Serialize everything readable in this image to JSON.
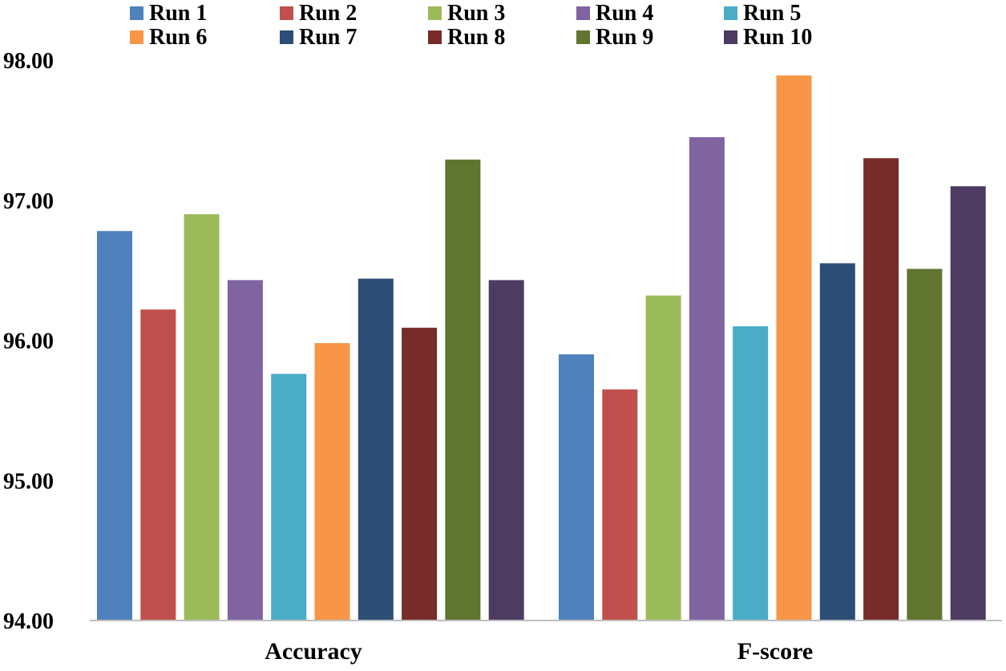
{
  "chart_data": {
    "type": "bar",
    "title": "",
    "xlabel": "",
    "ylabel": "",
    "ylim": [
      94,
      98
    ],
    "yticks": [
      "94.00",
      "95.00",
      "96.00",
      "97.00",
      "98.00"
    ],
    "grid": false,
    "legend_position": "top",
    "categories": [
      "Accuracy",
      "F-score"
    ],
    "series": [
      {
        "name": "Run 1",
        "color": "#4F81BD",
        "values": [
          96.78,
          95.9
        ]
      },
      {
        "name": "Run 2",
        "color": "#C0504D",
        "values": [
          96.22,
          95.65
        ]
      },
      {
        "name": "Run 3",
        "color": "#9BBB59",
        "values": [
          96.9,
          96.32
        ]
      },
      {
        "name": "Run 4",
        "color": "#8064A2",
        "values": [
          96.43,
          97.45
        ]
      },
      {
        "name": "Run 5",
        "color": "#4BACC6",
        "values": [
          95.76,
          96.1
        ]
      },
      {
        "name": "Run 6",
        "color": "#F79646",
        "values": [
          95.98,
          97.89
        ]
      },
      {
        "name": "Run 7",
        "color": "#2C4D75",
        "values": [
          96.44,
          96.55
        ]
      },
      {
        "name": "Run 8",
        "color": "#772C2A",
        "values": [
          96.09,
          97.3
        ]
      },
      {
        "name": "Run 9",
        "color": "#5F7530",
        "values": [
          97.29,
          96.51
        ]
      },
      {
        "name": "Run 10",
        "color": "#4D3B62",
        "values": [
          96.43,
          97.1
        ]
      }
    ]
  }
}
